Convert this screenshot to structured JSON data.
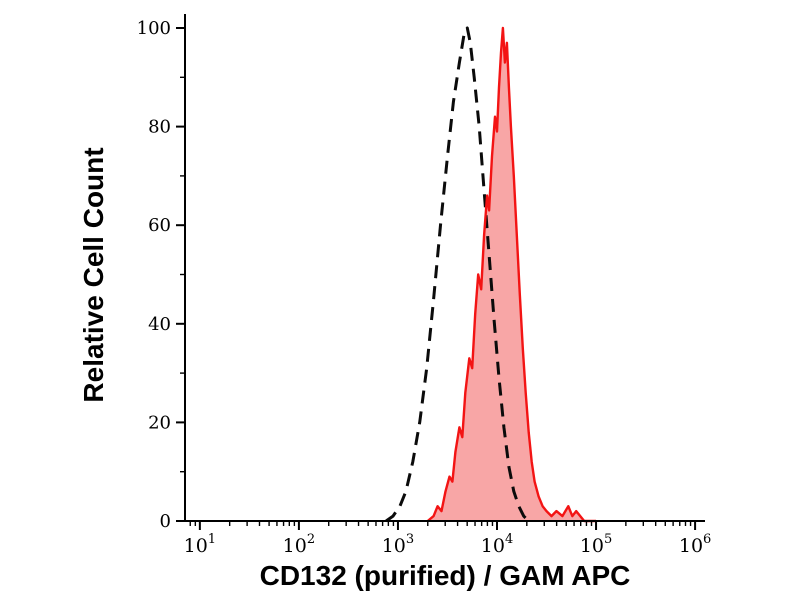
{
  "chart_data": {
    "type": "area",
    "subtype": "flow-cytometry-histogram-overlay",
    "title": "",
    "xlabel": "CD132 (purified) / GAM APC",
    "ylabel": "Relative Cell Count",
    "x_scale": "log10",
    "x_range_log10": [
      0.85,
      6.1
    ],
    "ylim": [
      0,
      100
    ],
    "y_major_ticks": [
      0,
      20,
      40,
      60,
      80,
      100
    ],
    "y_minor_step": 10,
    "x_major_ticks": [
      {
        "log10": 1,
        "base": "10",
        "exp": "1"
      },
      {
        "log10": 2,
        "base": "10",
        "exp": "2"
      },
      {
        "log10": 3,
        "base": "10",
        "exp": "3"
      },
      {
        "log10": 4,
        "base": "10",
        "exp": "4"
      },
      {
        "log10": 5,
        "base": "10",
        "exp": "5"
      },
      {
        "log10": 6,
        "base": "10",
        "exp": "6"
      }
    ],
    "grid": false,
    "legend": "none",
    "axis_color": "#000000",
    "series": [
      {
        "name": "dashed-black-histogram",
        "line_style": "dashed",
        "color": "#0b0b0b",
        "fill": "none",
        "peak_log10x": 3.7,
        "peak_value": 100,
        "points": [
          [
            2.88,
            0
          ],
          [
            2.95,
            1
          ],
          [
            3.02,
            3
          ],
          [
            3.08,
            6
          ],
          [
            3.15,
            12
          ],
          [
            3.22,
            20
          ],
          [
            3.29,
            31
          ],
          [
            3.36,
            45
          ],
          [
            3.43,
            60
          ],
          [
            3.5,
            74
          ],
          [
            3.56,
            85
          ],
          [
            3.62,
            93
          ],
          [
            3.67,
            99
          ],
          [
            3.7,
            100
          ],
          [
            3.73,
            97
          ],
          [
            3.77,
            90
          ],
          [
            3.82,
            80
          ],
          [
            3.87,
            67
          ],
          [
            3.92,
            54
          ],
          [
            3.97,
            41
          ],
          [
            4.02,
            29
          ],
          [
            4.07,
            19
          ],
          [
            4.12,
            11
          ],
          [
            4.17,
            6
          ],
          [
            4.22,
            3
          ],
          [
            4.27,
            1
          ],
          [
            4.32,
            0
          ]
        ]
      },
      {
        "name": "red-filled-histogram",
        "line_style": "solid",
        "color": "#f31414",
        "fill": "#f8a6a6",
        "peak_log10x": 4.06,
        "peak_value": 100,
        "points": [
          [
            3.3,
            0
          ],
          [
            3.36,
            1
          ],
          [
            3.4,
            3
          ],
          [
            3.44,
            2
          ],
          [
            3.48,
            6
          ],
          [
            3.52,
            9
          ],
          [
            3.55,
            8
          ],
          [
            3.58,
            14
          ],
          [
            3.62,
            19
          ],
          [
            3.65,
            17
          ],
          [
            3.68,
            26
          ],
          [
            3.72,
            33
          ],
          [
            3.75,
            31
          ],
          [
            3.78,
            42
          ],
          [
            3.81,
            50
          ],
          [
            3.84,
            47
          ],
          [
            3.87,
            58
          ],
          [
            3.9,
            66
          ],
          [
            3.92,
            63
          ],
          [
            3.95,
            74
          ],
          [
            3.98,
            82
          ],
          [
            4.0,
            79
          ],
          [
            4.02,
            88
          ],
          [
            4.04,
            95
          ],
          [
            4.06,
            100
          ],
          [
            4.08,
            93
          ],
          [
            4.1,
            97
          ],
          [
            4.12,
            88
          ],
          [
            4.14,
            80
          ],
          [
            4.17,
            70
          ],
          [
            4.2,
            58
          ],
          [
            4.23,
            46
          ],
          [
            4.26,
            35
          ],
          [
            4.29,
            26
          ],
          [
            4.32,
            18
          ],
          [
            4.35,
            12
          ],
          [
            4.38,
            8
          ],
          [
            4.42,
            5
          ],
          [
            4.46,
            3
          ],
          [
            4.5,
            2
          ],
          [
            4.55,
            1
          ],
          [
            4.6,
            2
          ],
          [
            4.66,
            1
          ],
          [
            4.72,
            3
          ],
          [
            4.76,
            1
          ],
          [
            4.8,
            2
          ],
          [
            4.88,
            0
          ],
          [
            5.0,
            0
          ]
        ]
      }
    ]
  }
}
